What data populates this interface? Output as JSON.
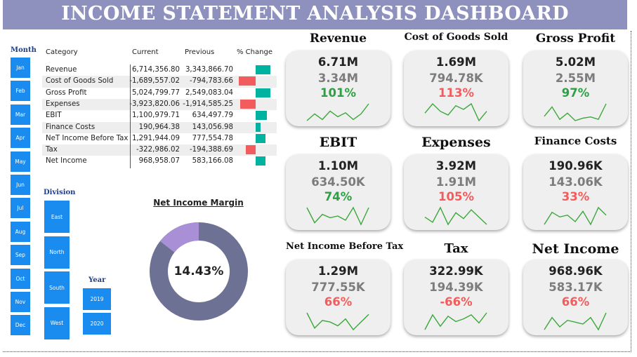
{
  "title": "INCOME STATEMENT ANALYSIS DASHBOARD",
  "colors": {
    "title_bg": "#8e91be",
    "slicer": "#1a8cf0",
    "positive": "#2ea043",
    "negative": "#f25c5c",
    "bar_pos": "#00b3a1",
    "bar_neg": "#f25c5c",
    "spark": "#3aa83a",
    "donut_main": "#6d7294",
    "donut_slice": "#a98fd6"
  },
  "month_slicer": {
    "title": "Month",
    "items": [
      "Jan",
      "Feb",
      "Mar",
      "Apr",
      "May",
      "Jun",
      "Jul",
      "Aug",
      "Sep",
      "Oct",
      "Nov",
      "Dec"
    ]
  },
  "division_slicer": {
    "title": "Division",
    "items": [
      "East",
      "North",
      "South",
      "West"
    ]
  },
  "year_slicer": {
    "title": "Year",
    "items": [
      "2019",
      "2020"
    ]
  },
  "table": {
    "headers": [
      "Category",
      "Current",
      "Previous",
      "% Change"
    ],
    "rows": [
      {
        "category": "Revenue",
        "current": "6,714,356.80",
        "previous": "3,343,866.70",
        "change_pct": 101
      },
      {
        "category": "Cost of Goods Sold",
        "current": "-1,689,557.02",
        "previous": "-794,783.66",
        "change_pct": -113
      },
      {
        "category": "Gross Profit",
        "current": "5,024,799.77",
        "previous": "2,549,083.04",
        "change_pct": 97
      },
      {
        "category": "Expenses",
        "current": "-3,923,820.06",
        "previous": "-1,914,585.25",
        "change_pct": -105
      },
      {
        "category": "EBIT",
        "current": "1,100,979.71",
        "previous": "634,497.79",
        "change_pct": 74
      },
      {
        "category": "Finance Costs",
        "current": "190,964.38",
        "previous": "143,056.98",
        "change_pct": 33
      },
      {
        "category": "NeT Income Before Tax",
        "current": "1,291,944.09",
        "previous": "777,554.78",
        "change_pct": 66
      },
      {
        "category": "Tax",
        "current": "-322,986.02",
        "previous": "-194,388.69",
        "change_pct": -66
      },
      {
        "category": "Net Income",
        "current": "968,958.07",
        "previous": "583,166.08",
        "change_pct": 66
      }
    ]
  },
  "net_income_margin": {
    "title": "Net Income Margin",
    "value": "14.43%",
    "fraction": 0.1443
  },
  "kpis": [
    {
      "title": "Revenue",
      "current": "6.71M",
      "previous": "3.34M",
      "change": "101%",
      "positive": true,
      "spark": [
        42,
        30,
        40,
        25,
        35,
        28,
        40,
        30,
        12
      ]
    },
    {
      "title": "Cost of Goods Sold",
      "current": "1.69M",
      "previous": "794.78K",
      "change": "113%",
      "positive": false,
      "spark": [
        30,
        20,
        28,
        32,
        22,
        26,
        20,
        38,
        28
      ]
    },
    {
      "title": "Gross Profit",
      "current": "5.02M",
      "previous": "2.55M",
      "change": "97%",
      "positive": true,
      "spark": [
        35,
        20,
        40,
        30,
        42,
        38,
        36,
        40,
        15
      ]
    },
    {
      "title": "EBIT",
      "current": "1.10M",
      "previous": "634.50K",
      "change": "74%",
      "positive": true,
      "spark": [
        20,
        38,
        28,
        32,
        30,
        35,
        20,
        40,
        20
      ]
    },
    {
      "title": "Expenses",
      "current": "3.92M",
      "previous": "1.91M",
      "change": "105%",
      "positive": false,
      "spark": [
        28,
        35,
        15,
        38,
        22,
        30,
        18,
        28,
        38
      ]
    },
    {
      "title": "Finance Costs",
      "current": "190.96K",
      "previous": "143.06K",
      "change": "33%",
      "positive": false,
      "spark": [
        38,
        25,
        30,
        28,
        35,
        24,
        38,
        20,
        28
      ]
    },
    {
      "title": "Net Income Before Tax",
      "current": "1.29M",
      "previous": "777.55K",
      "change": "66%",
      "positive": false,
      "spark": [
        18,
        38,
        28,
        30,
        35,
        26,
        40,
        30,
        20
      ]
    },
    {
      "title": "Tax",
      "current": "322.99K",
      "previous": "194.39K",
      "change": "-66%",
      "positive": false,
      "spark": [
        40,
        18,
        35,
        20,
        28,
        24,
        18,
        30,
        15
      ]
    },
    {
      "title": "Net Income",
      "current": "968.96K",
      "previous": "583.17K",
      "change": "66%",
      "positive": false,
      "spark": [
        38,
        25,
        35,
        28,
        30,
        32,
        25,
        38,
        20
      ]
    }
  ]
}
